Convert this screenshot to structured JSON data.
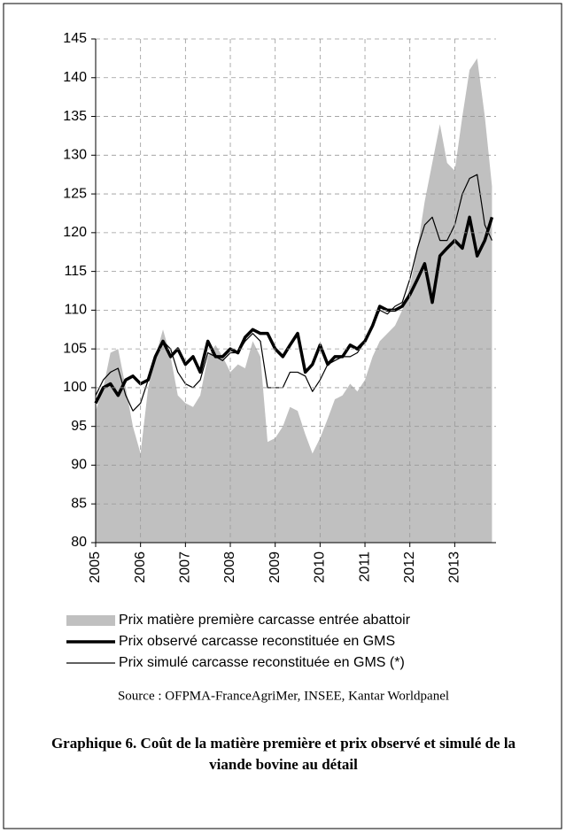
{
  "chart_data": {
    "type": "line",
    "title": "Graphique 6. Coût de la matière première et prix observé et simulé de la viande bovine au détail",
    "source": "Source : OFPMA-FranceAgriMer, INSEE, Kantar Worldpanel",
    "x": [
      2005.0,
      2005.17,
      2005.33,
      2005.5,
      2005.67,
      2005.83,
      2006.0,
      2006.17,
      2006.33,
      2006.5,
      2006.67,
      2006.83,
      2007.0,
      2007.17,
      2007.33,
      2007.5,
      2007.67,
      2007.83,
      2008.0,
      2008.17,
      2008.33,
      2008.5,
      2008.67,
      2008.83,
      2009.0,
      2009.17,
      2009.33,
      2009.5,
      2009.67,
      2009.83,
      2010.0,
      2010.17,
      2010.33,
      2010.5,
      2010.67,
      2010.83,
      2011.0,
      2011.17,
      2011.33,
      2011.5,
      2011.67,
      2011.83,
      2012.0,
      2012.17,
      2012.33,
      2012.5,
      2012.67,
      2012.83,
      2013.0,
      2013.17,
      2013.33,
      2013.5,
      2013.67,
      2013.83
    ],
    "series": [
      {
        "name": "Prix matière première carcasse entrée abattoir",
        "style": "area",
        "color": "#c0c0c0",
        "values": [
          97,
          100,
          104.5,
          105,
          100,
          95,
          91.5,
          100,
          104,
          107.5,
          104,
          99,
          98,
          97.5,
          99,
          104,
          105.5,
          104,
          102,
          103,
          102.5,
          106,
          104,
          93,
          93.5,
          95,
          97.5,
          97,
          94,
          91.5,
          93.5,
          96,
          98.5,
          99,
          100.5,
          99.5,
          101,
          104,
          106,
          107,
          108,
          110,
          113,
          118,
          124,
          129,
          134,
          129,
          128,
          135,
          141,
          142.5,
          135,
          126
        ]
      },
      {
        "name": "Prix observé carcasse reconstituée en GMS",
        "style": "line",
        "color": "#000000",
        "line_width": 3.5,
        "values": [
          98,
          100,
          100.5,
          99,
          101,
          101.5,
          100.5,
          101,
          104,
          106,
          104,
          105,
          103,
          104,
          102,
          106,
          104,
          104,
          105,
          104.5,
          106.5,
          107.5,
          107,
          107,
          105,
          104,
          105.5,
          107,
          102,
          103,
          105.5,
          103,
          104,
          104,
          105.5,
          105,
          106,
          108,
          110.5,
          110,
          110,
          110.5,
          112,
          114,
          116,
          111,
          117,
          118,
          119,
          118,
          122,
          117,
          119,
          122
        ]
      },
      {
        "name": "Prix simulé carcasse reconstituée en GMS (*)",
        "style": "line",
        "color": "#000000",
        "line_width": 1.2,
        "values": [
          99,
          101,
          102,
          102.5,
          99,
          97,
          98,
          101,
          104,
          106,
          105,
          102,
          100.5,
          100,
          101,
          104.5,
          104,
          103.5,
          104.5,
          104.5,
          106,
          107,
          106,
          100,
          100,
          100,
          102,
          102,
          101.5,
          99.5,
          101,
          103,
          103.5,
          104,
          104,
          104.5,
          106,
          108,
          110,
          109.5,
          110.5,
          111,
          114,
          118,
          121,
          122,
          119,
          119,
          121,
          125,
          127,
          127.5,
          121,
          119
        ]
      }
    ],
    "xlim": [
      2005,
      2013.92
    ],
    "xticks": [
      2005,
      2006,
      2007,
      2008,
      2009,
      2010,
      2011,
      2012,
      2013
    ],
    "ylim": [
      80,
      145
    ],
    "yticks": [
      80,
      85,
      90,
      95,
      100,
      105,
      110,
      115,
      120,
      125,
      130,
      135,
      140,
      145
    ],
    "grid": true
  }
}
